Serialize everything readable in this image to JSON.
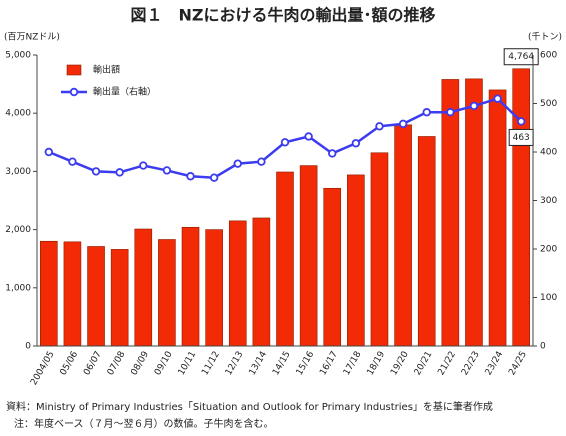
{
  "chart_data": {
    "type": "bar-line",
    "title": "図１　NZにおける牛肉の輸出量･額の推移",
    "y_label": "(百万NZドル)",
    "y2_label": "(千トン)",
    "categories": [
      "2004/05",
      "05/06",
      "06/07",
      "07/08",
      "08/09",
      "09/10",
      "10/11",
      "11/12",
      "12/13",
      "13/14",
      "14/15",
      "15/16",
      "16/17",
      "17/18",
      "18/19",
      "19/20",
      "20/21",
      "21/22",
      "22/23",
      "23/24",
      "24/25"
    ],
    "series": [
      {
        "name": "輸出額",
        "type": "bar",
        "color": "#f22a05",
        "axis": "y",
        "values": [
          1800,
          1790,
          1710,
          1660,
          2010,
          1830,
          2040,
          2000,
          2150,
          2200,
          2990,
          3100,
          2710,
          2940,
          3320,
          3800,
          3600,
          4580,
          4590,
          4400,
          4764
        ],
        "value_labels": [
          null,
          null,
          null,
          null,
          null,
          null,
          null,
          null,
          null,
          null,
          null,
          null,
          null,
          null,
          null,
          null,
          null,
          null,
          null,
          null,
          "4,764"
        ]
      },
      {
        "name": "輸出量（右軸）",
        "type": "line",
        "color": "#3b3bf0",
        "axis": "y2",
        "values": [
          400,
          380,
          360,
          358,
          372,
          362,
          350,
          347,
          376,
          380,
          420,
          432,
          397,
          418,
          453,
          458,
          482,
          482,
          495,
          510,
          463
        ],
        "value_labels": [
          null,
          null,
          null,
          null,
          null,
          null,
          null,
          null,
          null,
          null,
          null,
          null,
          null,
          null,
          null,
          null,
          null,
          null,
          null,
          null,
          "463"
        ]
      }
    ],
    "ylim": [
      0,
      5000
    ],
    "yticks": [
      0,
      {
        "value": 1000,
        "label": "1,000"
      },
      {
        "value": 2000,
        "label": "2,000"
      },
      {
        "value": 3000,
        "label": "3,000"
      },
      {
        "value": 4000,
        "label": "4,000"
      },
      {
        "value": 5000,
        "label": "5,000"
      }
    ],
    "y2lim": [
      0,
      600
    ],
    "y2ticks": [
      0,
      100,
      200,
      300,
      400,
      500,
      600
    ],
    "legend": "upper left",
    "notes": [
      "資料：Ministry of Primary Industries「Situation and Outlook for Primary Industries」を基に筆者作成",
      "注：年度ベース（７月～翌６月）の数値。子牛肉を含む。"
    ]
  }
}
